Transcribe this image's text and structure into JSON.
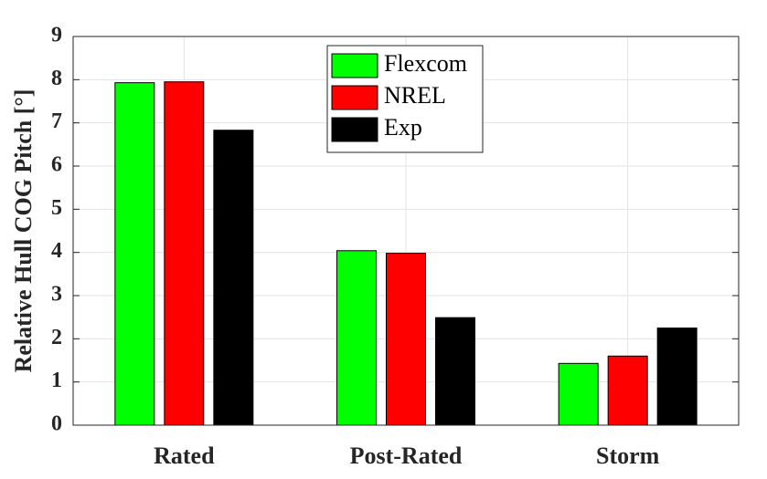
{
  "chart_data": {
    "type": "bar",
    "y_label": "Relative Hull COG Pitch [°]",
    "categories": [
      "Rated",
      "Post-Rated",
      "Storm"
    ],
    "series": [
      {
        "name": "Flexcom",
        "color": "#00ff00",
        "values": [
          7.93,
          4.04,
          1.43
        ]
      },
      {
        "name": "NREL",
        "color": "#ff0000",
        "values": [
          7.95,
          3.98,
          1.6
        ]
      },
      {
        "name": "Exp",
        "color": "#000000",
        "values": [
          6.83,
          2.49,
          2.25
        ]
      }
    ],
    "ylim": [
      0,
      9
    ],
    "yticks": [
      0,
      1,
      2,
      3,
      4,
      5,
      6,
      7,
      8,
      9
    ],
    "grid": true,
    "legend": "top"
  }
}
